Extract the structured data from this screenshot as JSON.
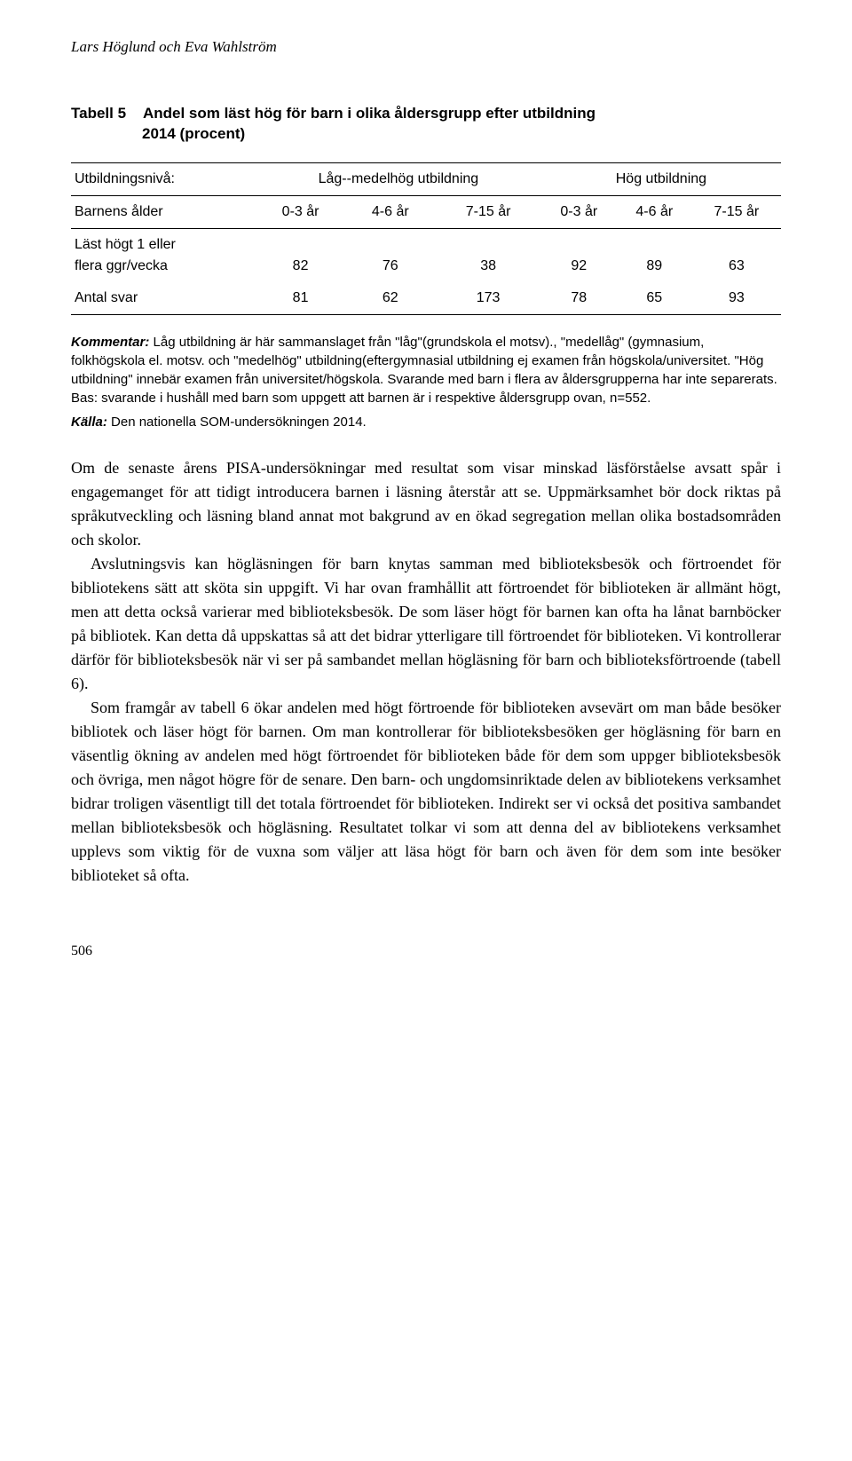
{
  "authors": "Lars Höglund och Eva Wahlström",
  "table": {
    "label": "Tabell 5",
    "title_line1": "Andel som läst hög för barn i olika åldersgrupp efter utbildning",
    "title_line2": "2014 (procent)",
    "col_header_row1": {
      "c0": "Utbildningsnivå:",
      "c1": "Låg--medelhög utbildning",
      "c2": "Hög utbildning"
    },
    "col_header_row2": {
      "c0": "Barnens ålder",
      "c1": "0-3 år",
      "c2": "4-6 år",
      "c3": "7-15 år",
      "c4": "0-3 år",
      "c5": "4-6 år",
      "c6": "7-15 år"
    },
    "rows": [
      {
        "label_line1": "Läst högt 1 eller",
        "label_line2": "flera ggr/vecka",
        "v1": "82",
        "v2": "76",
        "v3": "38",
        "v4": "92",
        "v5": "89",
        "v6": "63"
      },
      {
        "label_line1": "Antal svar",
        "label_line2": "",
        "v1": "81",
        "v2": "62",
        "v3": "173",
        "v4": "78",
        "v5": "65",
        "v6": "93"
      }
    ]
  },
  "kommentar": {
    "label": "Kommentar:",
    "text": " Låg utbildning är här sammanslaget från \"låg\"(grundskola el motsv)., \"medellåg\" (gymnasium, folkhögskola el. motsv. och \"medelhög\" utbildning(eftergymnasial utbildning ej examen från högskola/universitet. \"Hög utbildning\" innebär examen från universitet/högskola. Svarande med barn i flera av åldersgrupperna har inte separerats. Bas: svarande i hushåll med barn som uppgett att barnen är i respektive åldersgrupp ovan, n=552."
  },
  "kalla": {
    "label": "Källa:",
    "text": " Den nationella SOM-undersökningen 2014."
  },
  "body": {
    "p1": "Om de senaste årens PISA-undersökningar med resultat som visar minskad läsförståelse avsatt spår i engagemanget för att tidigt introducera barnen i läsning återstår att se. Uppmärksamhet bör dock riktas på språkutveckling och läsning bland annat mot bakgrund av en ökad segregation mellan olika bostadsområden och skolor.",
    "p2": "Avslutningsvis kan högläsningen för barn knytas samman med biblioteksbesök och förtroendet för bibliotekens sätt att sköta sin uppgift. Vi har ovan framhållit att förtroendet för biblioteken är allmänt högt, men att detta också varierar med biblioteksbesök. De som läser högt för barnen kan ofta ha lånat barnböcker på bibliotek. Kan detta då uppskattas så att det bidrar ytterligare till förtroendet för biblioteken. Vi kontrollerar därför för biblioteksbesök när vi ser på sambandet mellan högläsning för barn och biblioteksförtroende (tabell 6).",
    "p3": "Som framgår av tabell 6 ökar andelen med högt förtroende för biblioteken avsevärt om man både besöker bibliotek och läser högt för barnen. Om man kontrollerar för biblioteksbesöken ger högläsning för barn en väsentlig ökning av andelen med högt förtroendet för biblioteken både för dem som uppger biblioteksbesök och övriga, men något högre för de senare. Den barn- och ungdomsinriktade delen av bibliotekens verksamhet bidrar troligen väsentligt till det totala förtroendet för biblioteken. Indirekt ser vi också det positiva sambandet mellan biblioteksbesök och högläsning. Resultatet tolkar vi som att denna del av bibliotekens verksamhet upplevs som viktig för de vuxna som väljer att läsa högt för barn och även för dem som inte besöker biblioteket så ofta."
  },
  "pageNumber": "506"
}
